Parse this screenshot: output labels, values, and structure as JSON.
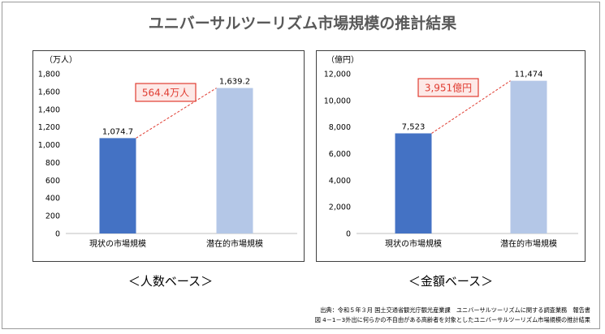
{
  "title": "ユニバーサルツーリズム市場規模の推計結果",
  "captions": {
    "left": "＜人数ベース＞",
    "right": "＜金額ベース＞"
  },
  "source": {
    "line1": "出典：令和５年３月 国土交通省観光庁観光産業課　ユニバーサルツーリズムに関する調査業務　報告書",
    "line2": "図 4－1－3外出に何らかの不自由がある高齢者を対象としたユニバーサルツーリズム市場規模の推計結果"
  },
  "colors": {
    "current": "#4472c4",
    "potential": "#b4c7e7",
    "callout_border": "#e03c31",
    "callout_text": "#e03c31",
    "callout_fill": "#fde9e7",
    "dash": "#e03c31"
  },
  "chart_data": [
    {
      "type": "bar",
      "unit_label": "（万人）",
      "categories": [
        "現状の市場規模",
        "潜在的市場規模"
      ],
      "values": [
        1074.7,
        1639.2
      ],
      "value_labels": [
        "1,074.7",
        "1,639.2"
      ],
      "ylim": [
        0,
        1800
      ],
      "yticks": [
        0,
        200,
        400,
        600,
        800,
        1000,
        1200,
        1400,
        1600,
        1800
      ],
      "ytick_labels": [
        "0",
        "200",
        "400",
        "600",
        "800",
        "1,000",
        "1,200",
        "1,400",
        "1,600",
        "1,800"
      ],
      "difference_label": "564.4万人",
      "grid": false
    },
    {
      "type": "bar",
      "unit_label": "（億円）",
      "categories": [
        "現状の市場規模",
        "潜在的市場規模"
      ],
      "values": [
        7523,
        11474
      ],
      "value_labels": [
        "7,523",
        "11,474"
      ],
      "ylim": [
        0,
        12000
      ],
      "yticks": [
        0,
        2000,
        4000,
        6000,
        8000,
        10000,
        12000
      ],
      "ytick_labels": [
        "0",
        "2,000",
        "4,000",
        "6,000",
        "8,000",
        "10,000",
        "12,000"
      ],
      "difference_label": "3,951億円",
      "grid": false
    }
  ]
}
